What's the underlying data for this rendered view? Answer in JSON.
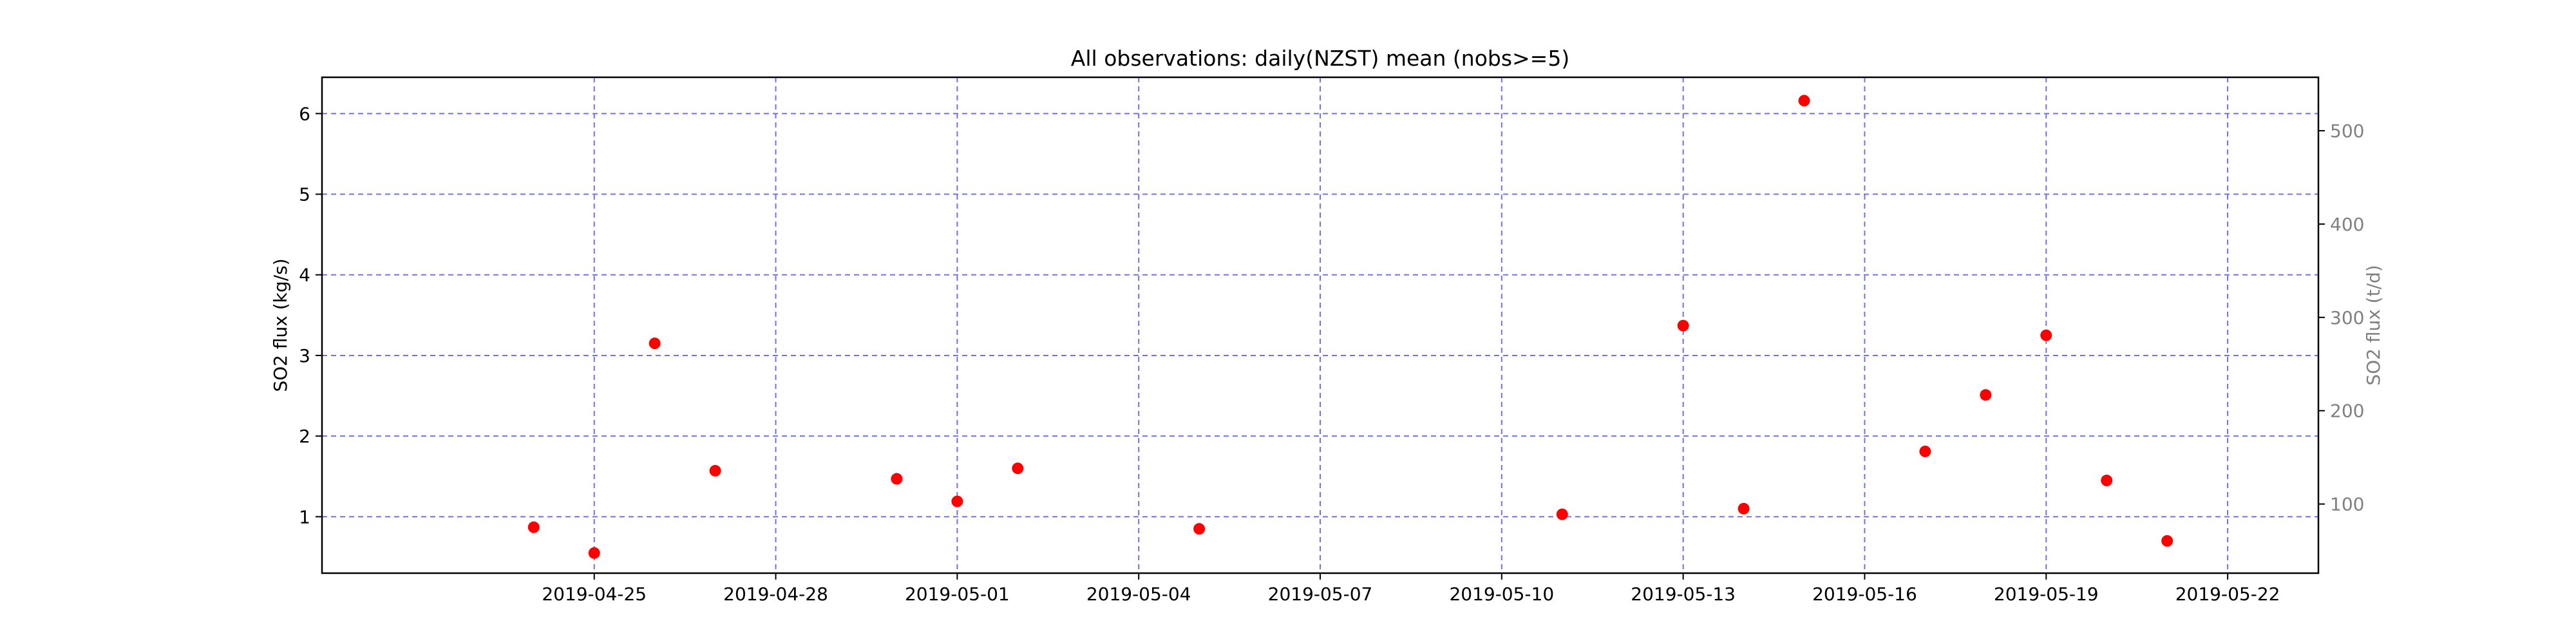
{
  "chart_data": {
    "type": "scatter",
    "title": "All observations: daily(NZST) mean (nobs>=5)",
    "ylabel": "SO2 flux (kg/s)",
    "ylabel_right": "SO2 flux (t/d)",
    "xlabel": "",
    "xlim": [
      "2019-04-22",
      "2019-05-22"
    ],
    "ylim": [
      0.3,
      6.45
    ],
    "right_axis_conversion": "86.4 t/d per kg/s",
    "x_ticks": [
      "2019-04-25",
      "2019-04-28",
      "2019-05-01",
      "2019-05-04",
      "2019-05-07",
      "2019-05-10",
      "2019-05-13",
      "2019-05-16",
      "2019-05-19",
      "2019-05-22"
    ],
    "y_ticks": [
      "1",
      "2",
      "3",
      "4",
      "5",
      "6"
    ],
    "y_ticks_right": [
      "100",
      "200",
      "300",
      "400",
      "500"
    ],
    "grid": true,
    "grid_color": "#7070f0",
    "marker_color": "#ff0000",
    "series": [
      {
        "points": [
          {
            "x": "2019-04-24",
            "y": 0.87
          },
          {
            "x": "2019-04-25",
            "y": 0.55
          },
          {
            "x": "2019-04-26",
            "y": 3.15
          },
          {
            "x": "2019-04-27",
            "y": 1.57
          },
          {
            "x": "2019-04-30",
            "y": 1.47
          },
          {
            "x": "2019-05-01",
            "y": 1.19
          },
          {
            "x": "2019-05-02",
            "y": 1.6
          },
          {
            "x": "2019-05-05",
            "y": 0.85
          },
          {
            "x": "2019-05-11",
            "y": 1.03
          },
          {
            "x": "2019-05-13",
            "y": 3.37
          },
          {
            "x": "2019-05-14",
            "y": 1.1
          },
          {
            "x": "2019-05-15",
            "y": 6.16
          },
          {
            "x": "2019-05-17",
            "y": 1.81
          },
          {
            "x": "2019-05-18",
            "y": 2.51
          },
          {
            "x": "2019-05-19",
            "y": 3.25
          },
          {
            "x": "2019-05-20",
            "y": 1.45
          },
          {
            "x": "2019-05-21",
            "y": 0.7
          }
        ]
      }
    ]
  }
}
